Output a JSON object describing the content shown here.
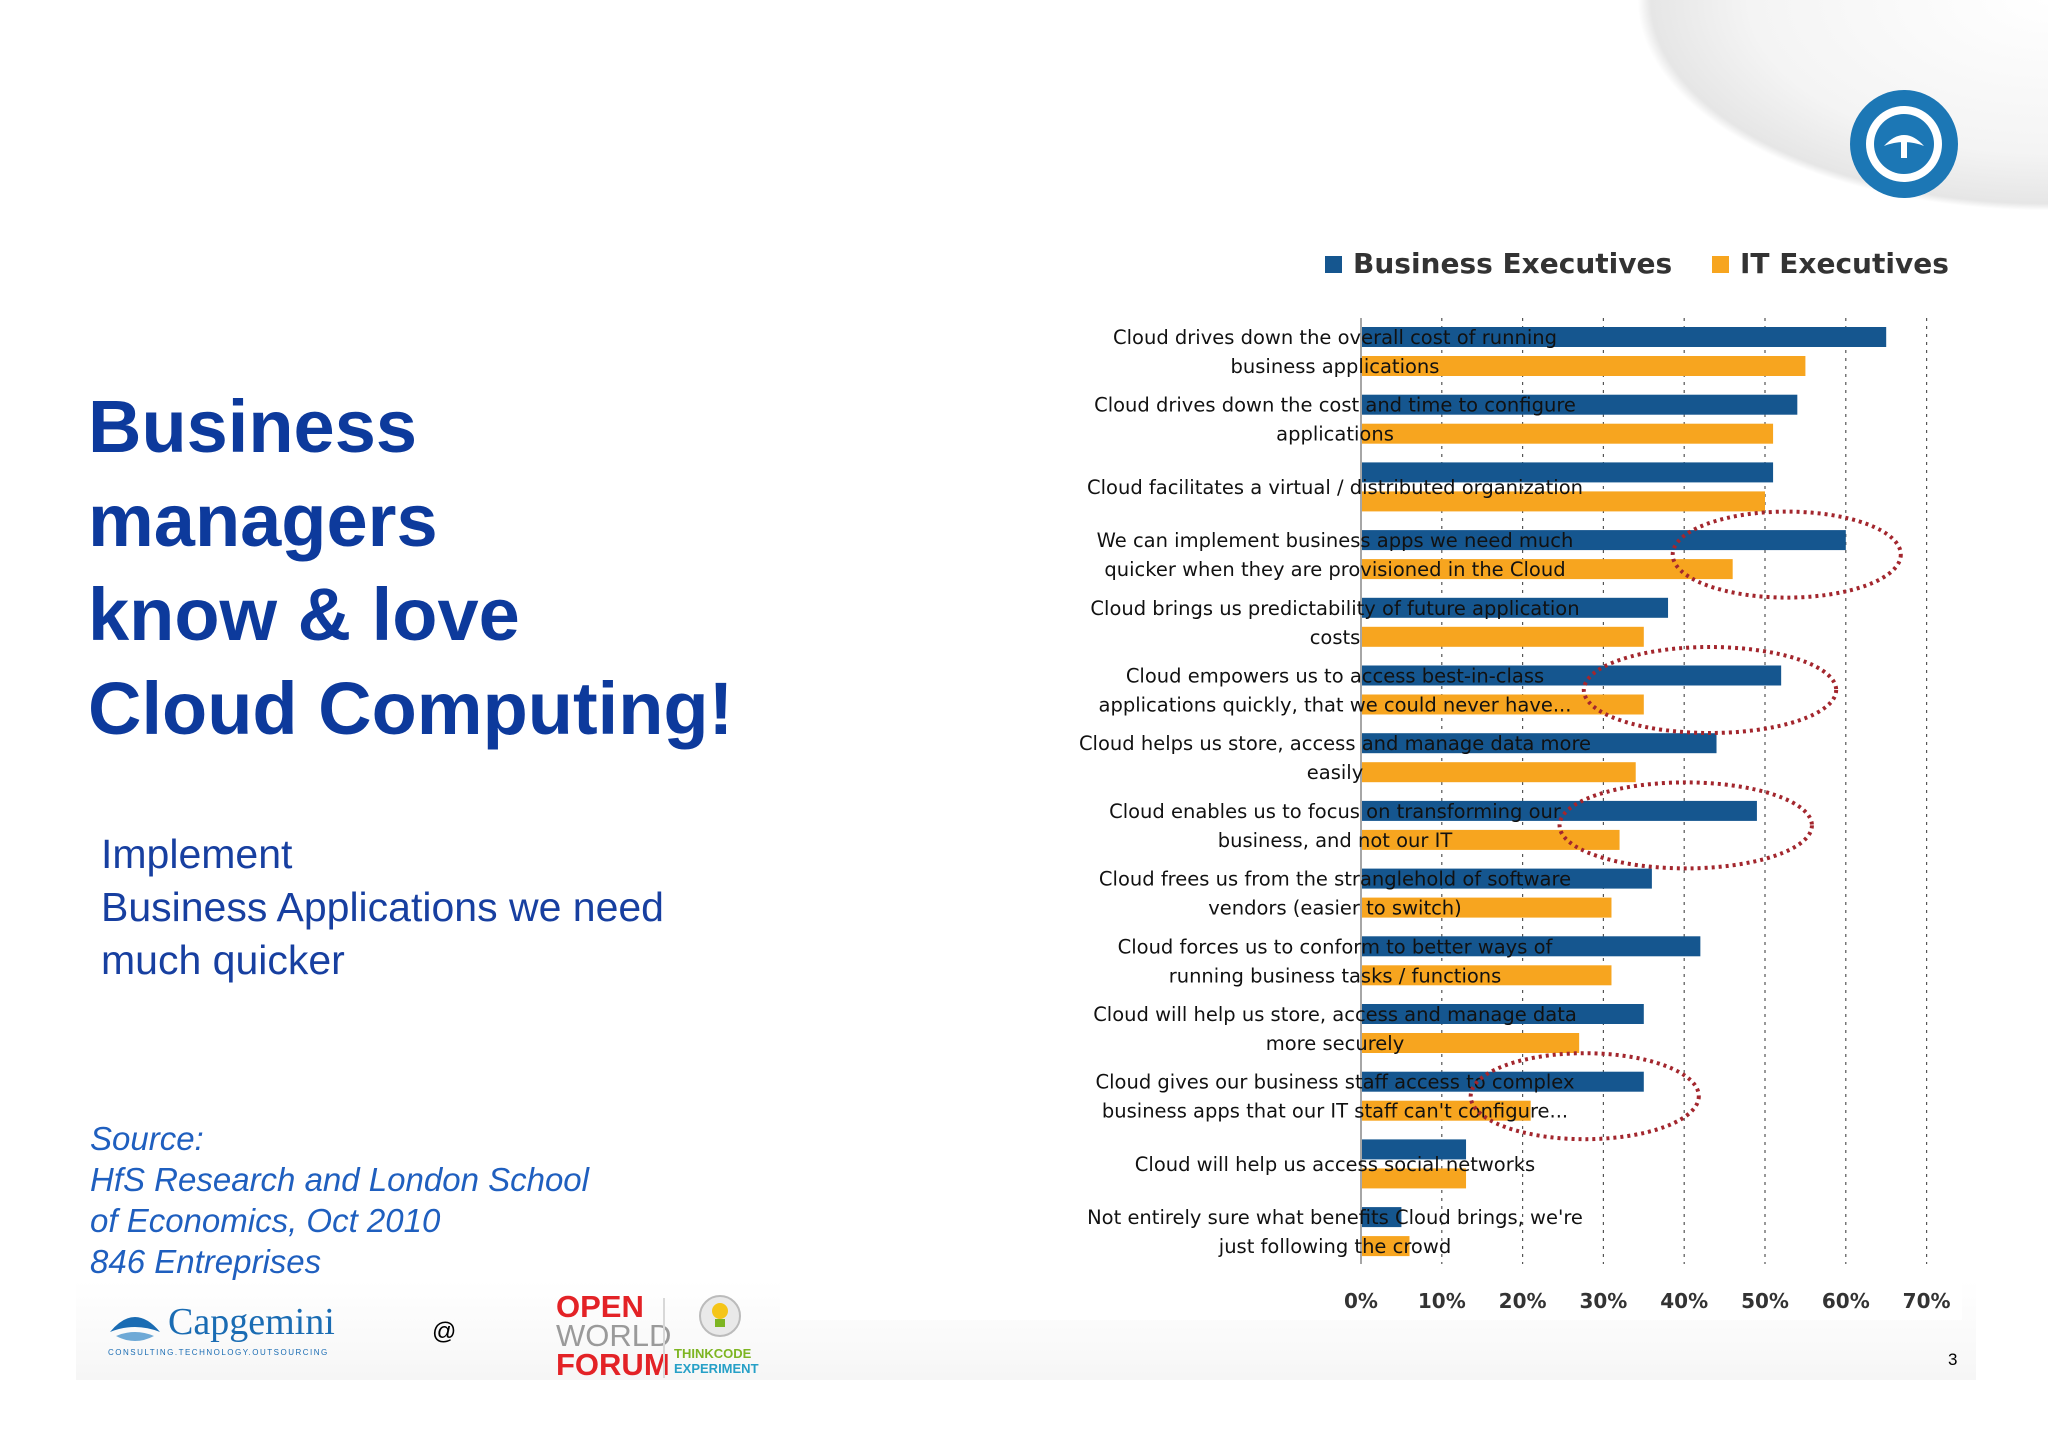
{
  "slide": {
    "title_lines": [
      "Business",
      "managers",
      "know & love",
      "Cloud Computing!"
    ],
    "subtitle_lines": [
      "Implement",
      "Business Applications we need",
      "much quicker"
    ],
    "source_lines": [
      "Source:",
      "HfS Research and London School",
      "of Economics, Oct 2010",
      "846 Entreprises"
    ],
    "at_symbol": "@",
    "page_number": "3"
  },
  "logos": {
    "capgemini_name": "Capgemini",
    "capgemini_tagline": "CONSULTING.TECHNOLOGY.OUTSOURCING",
    "owf_lines": [
      "OPEN",
      "WORLD",
      "FORUM"
    ],
    "tce_lines": [
      "THINKCODE",
      "EXPERIMENT"
    ]
  },
  "colors": {
    "title": "#0d3a9c",
    "business": "#15568f",
    "it": "#f7a51f",
    "highlight_circle": "#a3262d"
  },
  "chart_data": {
    "type": "bar",
    "orientation": "horizontal",
    "categories": [
      [
        "Cloud drives down the overall cost of running",
        "business applications"
      ],
      [
        "Cloud drives down the cost and time to configure",
        "applications"
      ],
      [
        "Cloud facilitates a virtual / distributed organization"
      ],
      [
        "We can implement business apps we need much",
        "quicker when they are provisioned in the Cloud"
      ],
      [
        "Cloud brings us predictability of future application",
        "costs"
      ],
      [
        "Cloud empowers us to access best-in-class",
        "applications quickly, that we could never have..."
      ],
      [
        "Cloud helps us store, access and manage data more",
        "easily"
      ],
      [
        "Cloud enables us to focus on transforming our",
        "business, and not our IT"
      ],
      [
        "Cloud frees us from the stranglehold of software",
        "vendors (easier to switch)"
      ],
      [
        "Cloud forces us to conform to better ways of",
        "running business tasks / functions"
      ],
      [
        "Cloud will help us store, access and manage data",
        "more securely"
      ],
      [
        "Cloud gives our business staff access to complex",
        "business apps that our IT staff can't configure..."
      ],
      [
        "Cloud will help us access social networks"
      ],
      [
        "Not entirely sure what benefits Cloud brings, we're",
        "just following the crowd"
      ]
    ],
    "series": [
      {
        "name": "Business Executives",
        "values": [
          65,
          54,
          51,
          60,
          38,
          52,
          44,
          49,
          36,
          42,
          35,
          35,
          13,
          5
        ]
      },
      {
        "name": "IT Executives",
        "values": [
          55,
          51,
          50,
          46,
          35,
          35,
          34,
          32,
          31,
          31,
          27,
          21,
          13,
          6
        ]
      }
    ],
    "xlim": [
      0,
      70
    ],
    "xticks": [
      "0%",
      "10%",
      "20%",
      "30%",
      "40%",
      "50%",
      "60%",
      "70%"
    ],
    "grid": "dashed vertical",
    "legend_position": "top-right",
    "highlighted_categories": [
      3,
      5,
      7,
      11
    ]
  }
}
